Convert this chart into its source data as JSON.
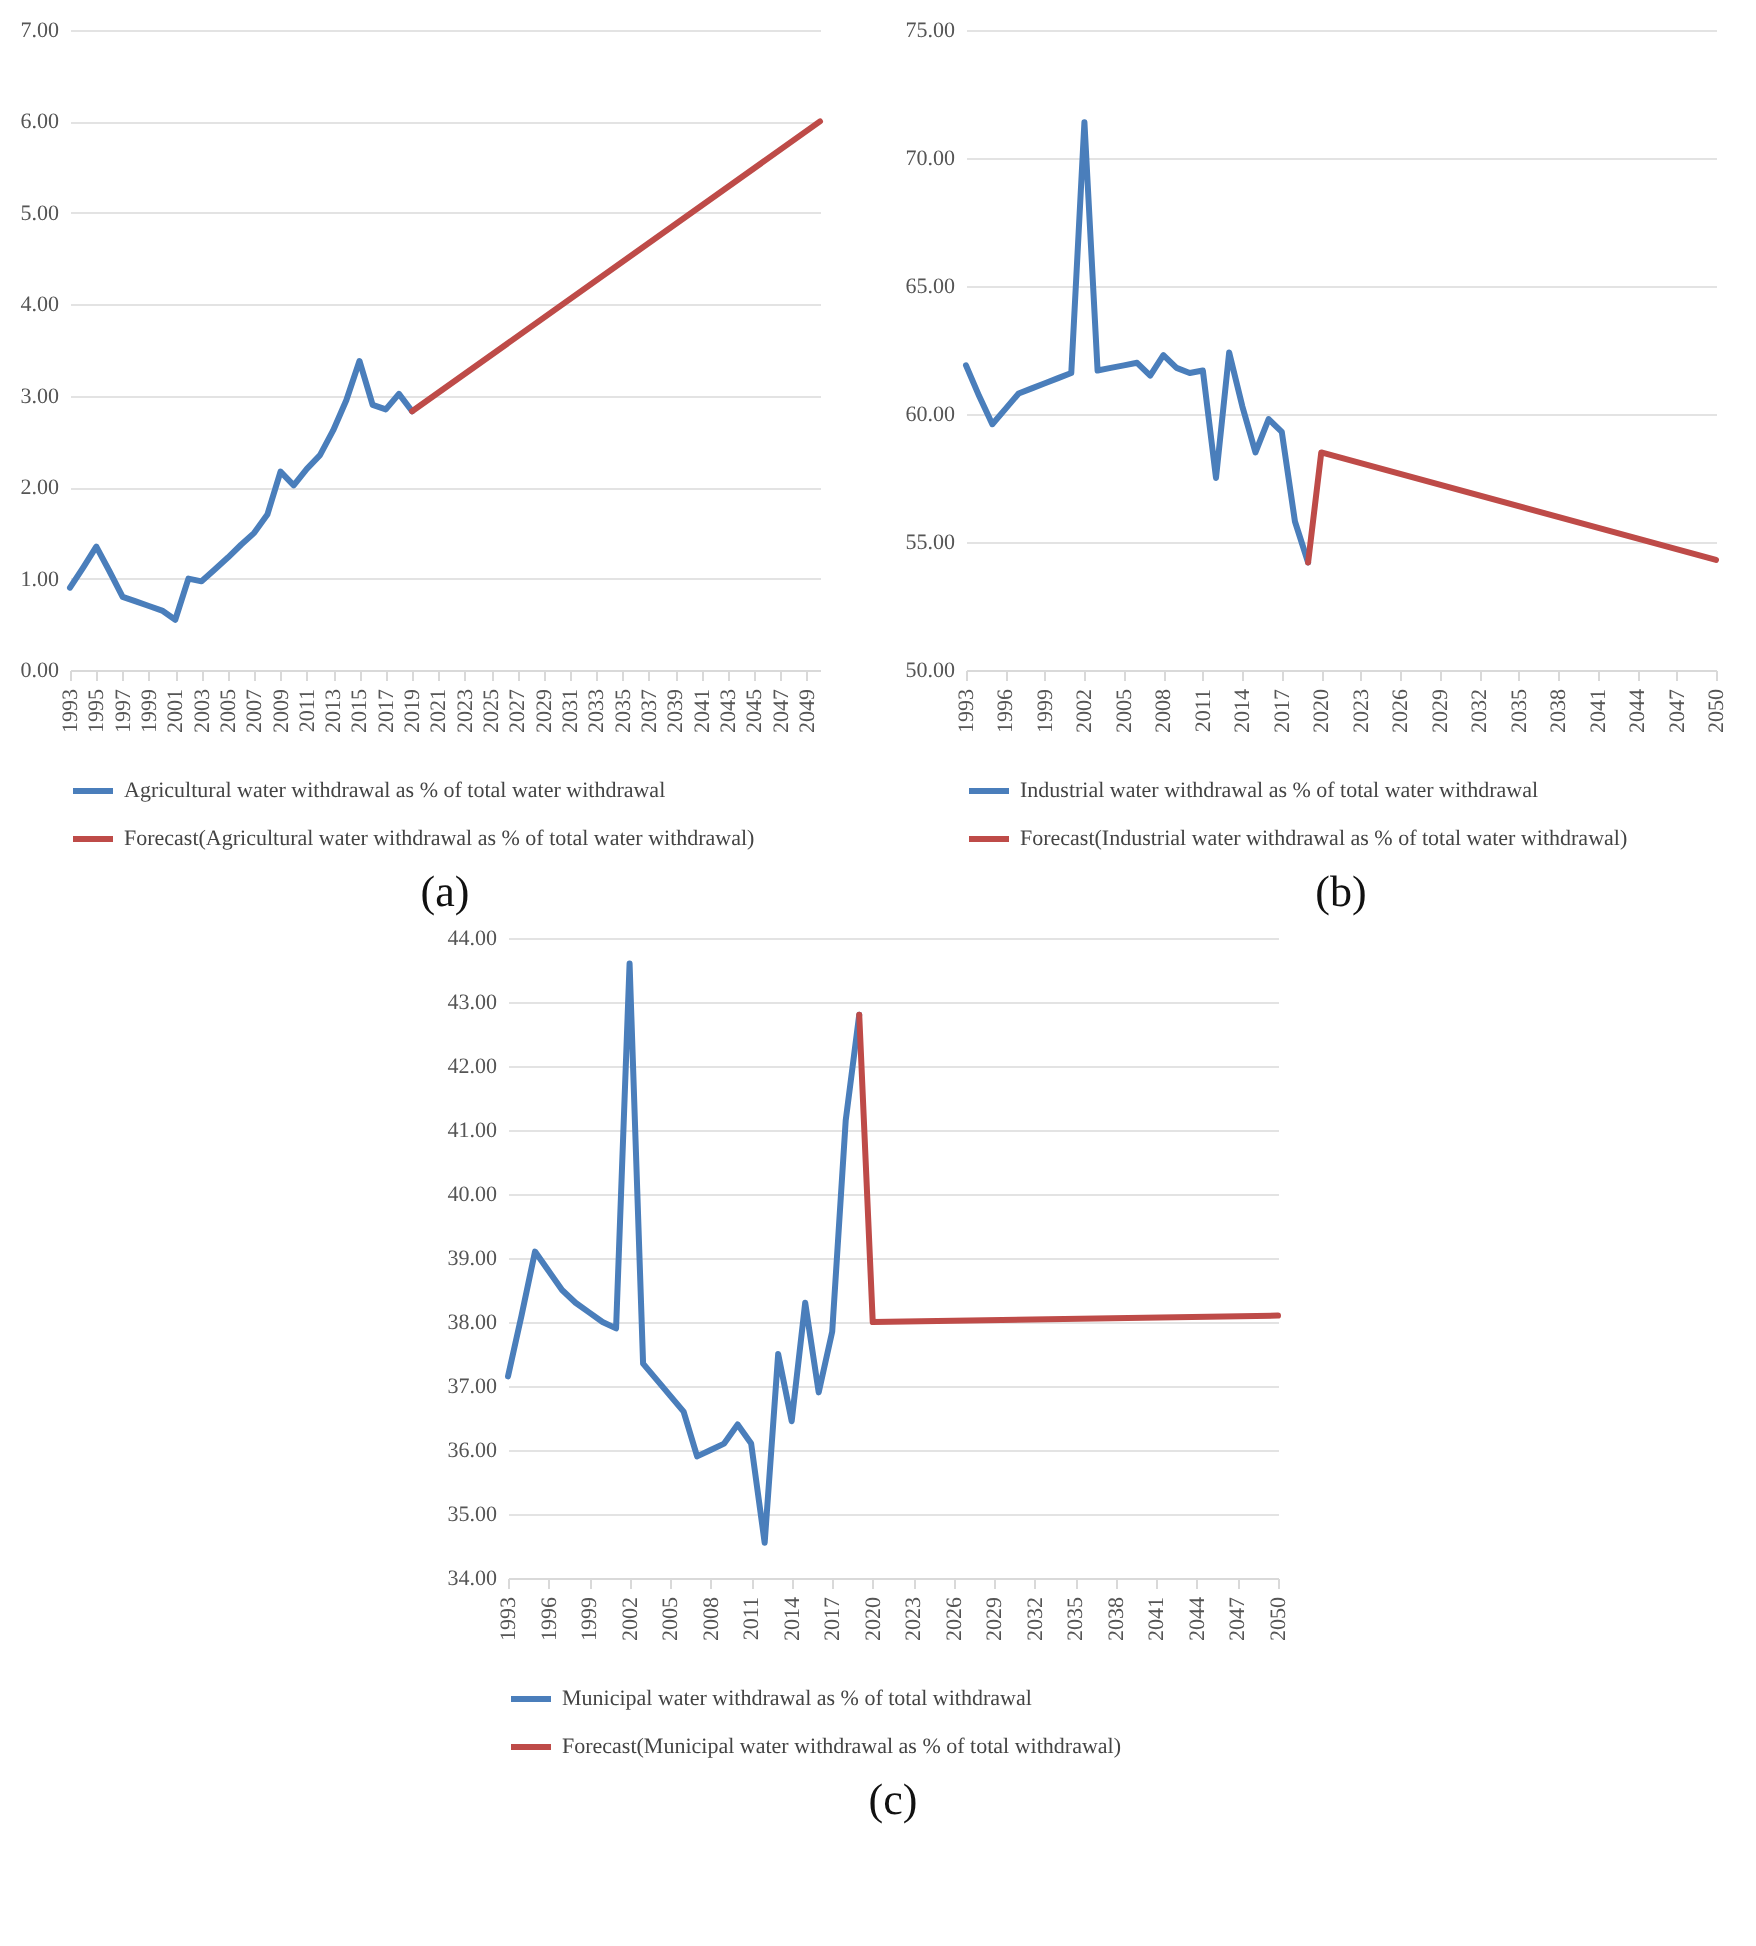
{
  "chart_data": [
    {
      "type": "line",
      "xlim": [
        1993,
        2050
      ],
      "ylim": [
        0,
        7
      ],
      "grid": "y",
      "legend": "bottom",
      "annotations": [
        "(a)"
      ],
      "xticks": [
        1993,
        1995,
        1997,
        1999,
        2001,
        2003,
        2005,
        2007,
        2009,
        2011,
        2013,
        2015,
        2017,
        2019,
        2021,
        2023,
        2025,
        2027,
        2029,
        2031,
        2033,
        2035,
        2037,
        2039,
        2041,
        2043,
        2045,
        2047,
        2049
      ],
      "yticks": [
        {
          "value": 0,
          "label": "0.00"
        },
        {
          "value": 1,
          "label": "1.00"
        },
        {
          "value": 2,
          "label": "2.00"
        },
        {
          "value": 3,
          "label": "3.00"
        },
        {
          "value": 4,
          "label": "4.00"
        },
        {
          "value": 5,
          "label": "5.00"
        },
        {
          "value": 6,
          "label": "6.00"
        },
        {
          "value": 7,
          "label": "7.00"
        }
      ],
      "series": [
        {
          "name": "Agricultural water withdrawal as % of total water withdrawal",
          "color": "#4a7ebb",
          "x": [
            1993,
            1994,
            1995,
            1996,
            1997,
            1998,
            1999,
            2000,
            2001,
            2002,
            2003,
            2004,
            2005,
            2006,
            2007,
            2008,
            2009,
            2010,
            2011,
            2012,
            2013,
            2014,
            2015,
            2016,
            2017,
            2018,
            2019
          ],
          "values": [
            0.9,
            1.12,
            1.35,
            1.08,
            0.8,
            0.75,
            0.7,
            0.65,
            0.55,
            1.0,
            0.97,
            1.1,
            1.23,
            1.37,
            1.5,
            1.7,
            2.17,
            2.02,
            2.2,
            2.35,
            2.62,
            2.95,
            3.38,
            2.9,
            2.85,
            3.02,
            2.83
          ]
        },
        {
          "name": "Forecast(Agricultural water withdrawal as % of total water withdrawal)",
          "color": "#be4b48",
          "x": [
            2019,
            2050
          ],
          "values": [
            2.83,
            6.0
          ]
        }
      ]
    },
    {
      "type": "line",
      "xlim": [
        1993,
        2050
      ],
      "ylim": [
        50,
        75
      ],
      "grid": "y",
      "legend": "bottom",
      "annotations": [
        "(b)"
      ],
      "xticks": [
        1993,
        1996,
        1999,
        2002,
        2005,
        2008,
        2011,
        2014,
        2017,
        2020,
        2023,
        2026,
        2029,
        2032,
        2035,
        2038,
        2041,
        2044,
        2047,
        2050
      ],
      "yticks": [
        {
          "value": 50,
          "label": "50.00"
        },
        {
          "value": 55,
          "label": "55.00"
        },
        {
          "value": 60,
          "label": "60.00"
        },
        {
          "value": 65,
          "label": "65.00"
        },
        {
          "value": 70,
          "label": "70.00"
        },
        {
          "value": 75,
          "label": "75.00"
        }
      ],
      "series": [
        {
          "name": "Industrial water withdrawal as % of total water withdrawal",
          "color": "#4a7ebb",
          "x": [
            1993,
            1994,
            1995,
            1996,
            1997,
            1998,
            1999,
            2000,
            2001,
            2002,
            2003,
            2004,
            2005,
            2006,
            2007,
            2008,
            2009,
            2010,
            2011,
            2012,
            2013,
            2014,
            2015,
            2016,
            2017,
            2018,
            2019
          ],
          "values": [
            61.9,
            60.7,
            59.6,
            60.2,
            60.8,
            61.0,
            61.2,
            61.4,
            61.6,
            71.4,
            61.7,
            61.8,
            61.9,
            62.0,
            61.5,
            62.3,
            61.8,
            61.6,
            61.7,
            57.5,
            62.4,
            60.3,
            58.5,
            59.8,
            59.3,
            55.8,
            54.2
          ]
        },
        {
          "name": "Forecast(Industrial water withdrawal as % of total water withdrawal)",
          "color": "#be4b48",
          "x": [
            2019,
            2020,
            2050
          ],
          "values": [
            54.2,
            58.5,
            54.3
          ]
        }
      ]
    },
    {
      "type": "line",
      "xlim": [
        1993,
        2050
      ],
      "ylim": [
        34,
        44
      ],
      "grid": "y",
      "legend": "bottom",
      "annotations": [
        "(c)"
      ],
      "xticks": [
        1993,
        1996,
        1999,
        2002,
        2005,
        2008,
        2011,
        2014,
        2017,
        2020,
        2023,
        2026,
        2029,
        2032,
        2035,
        2038,
        2041,
        2044,
        2047,
        2050
      ],
      "yticks": [
        {
          "value": 34,
          "label": "34.00"
        },
        {
          "value": 35,
          "label": "35.00"
        },
        {
          "value": 36,
          "label": "36.00"
        },
        {
          "value": 37,
          "label": "37.00"
        },
        {
          "value": 38,
          "label": "38.00"
        },
        {
          "value": 39,
          "label": "39.00"
        },
        {
          "value": 40,
          "label": "40.00"
        },
        {
          "value": 41,
          "label": "41.00"
        },
        {
          "value": 42,
          "label": "42.00"
        },
        {
          "value": 43,
          "label": "43.00"
        },
        {
          "value": 44,
          "label": "44.00"
        }
      ],
      "series": [
        {
          "name": "Municipal water withdrawal as % of total withdrawal",
          "color": "#4a7ebb",
          "x": [
            1993,
            1994,
            1995,
            1996,
            1997,
            1998,
            1999,
            2000,
            2001,
            2002,
            2003,
            2004,
            2005,
            2006,
            2007,
            2008,
            2009,
            2010,
            2011,
            2012,
            2013,
            2014,
            2015,
            2016,
            2017,
            2018,
            2019
          ],
          "values": [
            37.15,
            38.1,
            39.1,
            38.8,
            38.5,
            38.3,
            38.15,
            38.0,
            37.9,
            43.6,
            37.35,
            37.1,
            36.85,
            36.6,
            35.9,
            36.0,
            36.1,
            36.4,
            36.1,
            34.55,
            37.5,
            36.45,
            38.3,
            36.9,
            37.85,
            41.15,
            42.8
          ]
        },
        {
          "name": "Forecast(Municipal water withdrawal as % of total withdrawal)",
          "color": "#be4b48",
          "x": [
            2019,
            2020,
            2050
          ],
          "values": [
            42.8,
            38.0,
            38.1
          ]
        }
      ]
    }
  ]
}
